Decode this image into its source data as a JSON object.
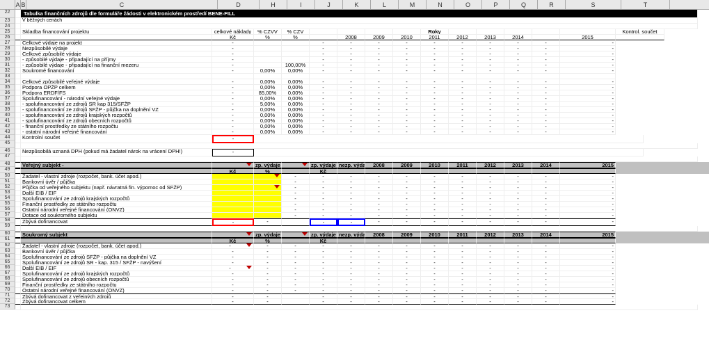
{
  "columns": [
    "A",
    "B",
    "C",
    "D",
    "H",
    "I",
    "J",
    "K",
    "L",
    "M",
    "N",
    "O",
    "P",
    "Q",
    "R",
    "S",
    "T"
  ],
  "row_start": 22,
  "row_end": 73,
  "title": "Tabulka finančních zdrojů dle formuláře žádosti v elektronickém prostředí BENE-FILL",
  "subtitle": "V běžných cenách",
  "header_row": {
    "c": "Skladba financování projektu",
    "d": "celkové náklady",
    "h": "% CZVV",
    "i": "% CZV",
    "roky_label": "Roky",
    "years": [
      "2008",
      "2009",
      "2010",
      "2011",
      "2012",
      "2013",
      "2014",
      "2015"
    ],
    "kontrol": "Kontrol. součet"
  },
  "unit_row": {
    "d": "Kč",
    "h": "%",
    "i": "%"
  },
  "body_rows": [
    {
      "c": "Celkové výdaje na projekt",
      "d": "-"
    },
    {
      "c": "Nezpůsobilé výdaje",
      "d": "-"
    },
    {
      "c": "Celkové způsobilé výdaje",
      "d": "-"
    },
    {
      "c": "- způsobilé výdaje - připadající na příjmy",
      "d": "-"
    },
    {
      "c": "- způsobilé výdaje - připadající na finanční mezeru",
      "d": "-",
      "i": "100,00%"
    },
    {
      "c": "Soukromé financování",
      "d": "-",
      "h": "0,00%",
      "i": "0,00%"
    },
    {
      "c": "",
      "d": ""
    },
    {
      "c": "Celkové způsobilé veřejné výdaje",
      "d": "-",
      "h": "0,00%",
      "i": "0,00%"
    },
    {
      "c": "Podpora OPŽP celkem",
      "d": "-",
      "h": "0,00%",
      "i": "0,00%"
    },
    {
      "c": "Podpora ERDF/FS",
      "d": "-",
      "h": "85,00%",
      "i": "0,00%"
    },
    {
      "c": "Spolufinancování - národní veřejné výdaje",
      "d": "-",
      "h": "0,00%",
      "i": "0,00%"
    },
    {
      "c": "- spolufinancování ze zdrojů SR kap 315/SFŽP",
      "d": "-",
      "h": "5,00%",
      "i": "0,00%"
    },
    {
      "c": "- spolufinancování ze zdrojů SFŽP - půjčka na doplnění VZ",
      "d": "-",
      "h": "0,00%",
      "i": "0,00%"
    },
    {
      "c": "- spolufinancování ze zdrojů krajských rozpočtů",
      "d": "-",
      "h": "0,00%",
      "i": "0,00%"
    },
    {
      "c": "- spolufinancování ze zdrojů obecních rozpočtů",
      "d": "-",
      "h": "0,00%",
      "i": "0,00%"
    },
    {
      "c": "- finanční prostředky ze státního rozpočtu",
      "d": "-",
      "h": "0,00%",
      "i": "0,00%"
    },
    {
      "c": "- ostatní národní veřejné financování",
      "d": "-",
      "h": "0,00%",
      "i": "0,00%"
    }
  ],
  "kontrolni": {
    "label": "Kontrolní součet",
    "d": "-"
  },
  "dph": {
    "label": "Nezpůsobilá uznaná DPH (pokud má žadatel nárok na vrácení DPH!)",
    "d": "-"
  },
  "section_ver": {
    "title": "Veřejný subjekt -",
    "cols": {
      "d": "Kč",
      "h": "zp. výdaje",
      "h2": "%",
      "j": "zp. výdaje",
      "j2": "Kč",
      "k": "nezp. výdaje"
    },
    "years": [
      "2008",
      "2009",
      "2010",
      "2011",
      "2012",
      "2013",
      "2014",
      "2015"
    ],
    "rows": [
      "Žadatel - vlastní zdroje (rozpočet, bank. účet apod.)",
      "Bankovní úvěr / půjčka",
      "Půjčka od veřejného subjektu (např. návratná fin. výpomoc od SFŽP)",
      "Další EIB / EIF",
      "Spolufinancování ze zdrojů krajských rozpočtů",
      "Finanční prostředky ze státního rozpočtu",
      "Ostatní národní veřejné financování (ONVZ)",
      "Dotace od soukromého subjektu"
    ],
    "footer": "Zbývá dofinancovat"
  },
  "section_souk": {
    "title": "Soukromý subjekt",
    "cols": {
      "d": "Kč",
      "h": "zp. výdaje",
      "h2": "%",
      "j": "zp. výdaje",
      "j2": "Kč",
      "k": "nezp. výdaje"
    },
    "years": [
      "2008",
      "2009",
      "2010",
      "2011",
      "2012",
      "2013",
      "2014",
      "2015"
    ],
    "rows": [
      "Žadatel - vlastní zdroje (rozpočet, bank. účet apod.)",
      "Bankovní úvěr / půjčka",
      "Spolufinancování ze zdrojů SFŽP - půjčka na doplnění VZ",
      "Spolufinancování ze zdrojů SR - kap. 315 / SFŽP - navýšení",
      "Další EIB / EIF",
      "Spolufinancování ze zdrojů krajských rozpočtů",
      "Spolufinancování ze zdrojů obecních rozpočtů",
      "Finanční prostředky ze státního rozpočtu",
      "Ostatní národní veřejné financování (ONVZ)"
    ],
    "footer1": "Zbývá dofinancovat z veřejných zdrojů",
    "footer2": "Zbývá dofinancovat celkem"
  },
  "colors": {
    "title_bg": "#000000",
    "title_fg": "#ffffff",
    "section_bg": "#c0c0c0",
    "yellow": "#ffff00",
    "red": "#ff0000",
    "blue": "#0000ff"
  }
}
